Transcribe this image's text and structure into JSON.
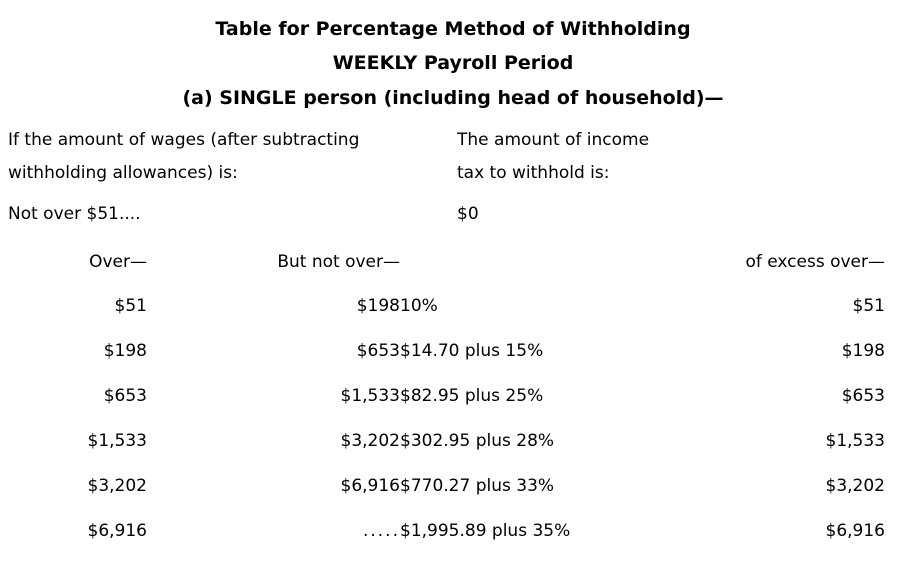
{
  "page": {
    "background_color": "#ffffff",
    "text_color": "#000000"
  },
  "header": {
    "line1": "Table for Percentage Method of Withholding",
    "line2": "WEEKLY Payroll Period",
    "line3": "(a) SINGLE person (including head of household)—"
  },
  "intro": {
    "wages_label_line1": "If the amount of wages (after subtracting",
    "wages_label_line2": "withholding allowances) is:",
    "tax_label_line1": "The amount of income",
    "tax_label_line2": "tax to withhold is:"
  },
  "base_case": {
    "label": "Not over $51....",
    "value": "$0"
  },
  "table": {
    "headers": {
      "over": "Over—",
      "but_not_over": "But not over—",
      "excess_over": "of excess over—"
    },
    "rows": [
      {
        "over": "$51",
        "but_not_over": "$198",
        "tax": "10%",
        "excess_over": "$51"
      },
      {
        "over": "$198",
        "but_not_over": "$653",
        "tax": "$14.70 plus 15%",
        "excess_over": "$198"
      },
      {
        "over": "$653",
        "but_not_over": "$1,533",
        "tax": "$82.95 plus 25%",
        "excess_over": "$653"
      },
      {
        "over": "$1,533",
        "but_not_over": "$3,202",
        "tax": "$302.95 plus 28%",
        "excess_over": "$1,533"
      },
      {
        "over": "$3,202",
        "but_not_over": "$6,916",
        "tax": "$770.27 plus 33%",
        "excess_over": "$3,202"
      },
      {
        "over": "$6,916",
        "but_not_over": ".....",
        "tax": "$1,995.89 plus 35%",
        "excess_over": "$6,916"
      }
    ]
  }
}
